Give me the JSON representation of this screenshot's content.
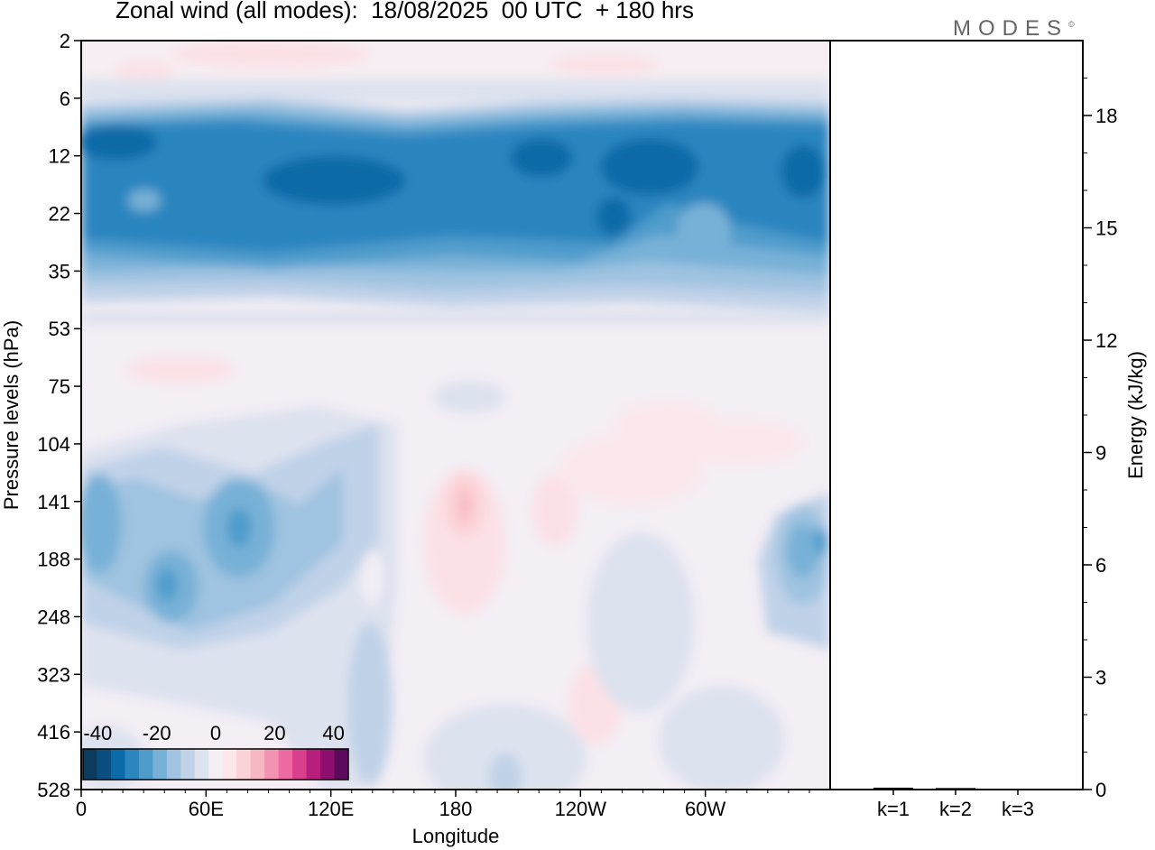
{
  "title": "Zonal wind (all modes):  18/08/2025  00 UTC  + 180 hrs",
  "logo": "MODES",
  "logo_mark": "©",
  "chart_data": [
    {
      "type": "heatmap",
      "title": "Zonal wind (all modes):  18/08/2025  00 UTC  + 180 hrs",
      "xlabel": "Longitude",
      "ylabel": "Pressure levels (hPa)",
      "x_ticks": [
        "0",
        "60E",
        "120E",
        "180",
        "120W",
        "60W"
      ],
      "x_tick_degrees": [
        0,
        60,
        120,
        180,
        240,
        300
      ],
      "xlim": [
        0,
        360
      ],
      "y_ticks": [
        "2",
        "6",
        "12",
        "22",
        "35",
        "53",
        "75",
        "104",
        "141",
        "188",
        "248",
        "323",
        "416",
        "528"
      ],
      "y_scale": "model levels (top 2 hPa, bottom 528 hPa)",
      "colorbar": {
        "tick_labels": [
          "-40",
          "-20",
          "0",
          "20",
          "40"
        ],
        "range": [
          -45,
          45
        ],
        "colors": [
          "#0b3b5d",
          "#0a4f80",
          "#0b6aa8",
          "#2b85bf",
          "#4f9ccc",
          "#78b1d7",
          "#9fc3e0",
          "#c0d2e8",
          "#dde2ef",
          "#f4eef5",
          "#fde7ea",
          "#fbd2d6",
          "#f8b7c2",
          "#f392b1",
          "#ec6aa0",
          "#d93f8d",
          "#b81f7c",
          "#8e0f6e",
          "#5e0a5c"
        ]
      }
    },
    {
      "type": "bar",
      "categories": [
        "k=1",
        "k=2",
        "k=3"
      ],
      "values": [
        0.05,
        0.04,
        0.0
      ],
      "ylabel": "Energy (kJ/kg)",
      "y_ticks": [
        "0",
        "3",
        "6",
        "9",
        "12",
        "15",
        "18"
      ],
      "ylim": [
        0,
        20
      ]
    }
  ]
}
